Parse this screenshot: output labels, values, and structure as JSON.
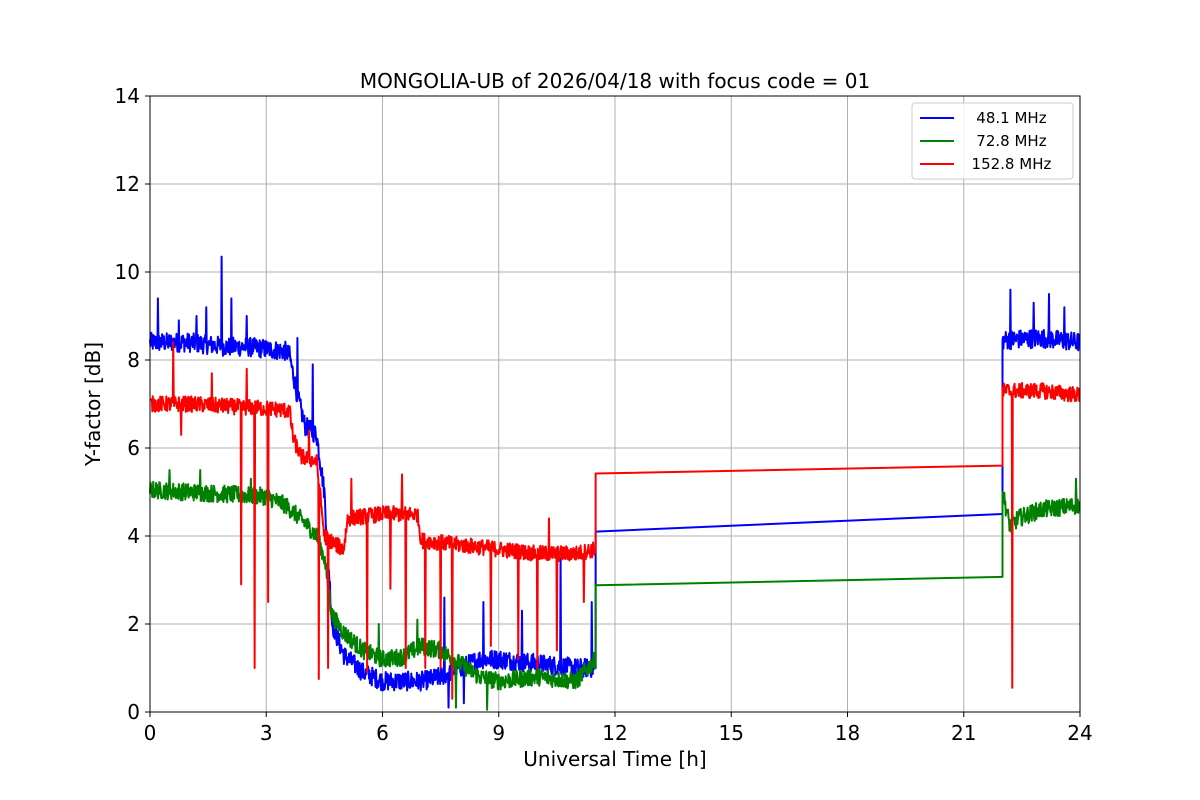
{
  "chart_data": {
    "type": "line",
    "title": "MONGOLIA-UB of 2026/04/18 with focus code = 01",
    "xlabel": "Universal Time [h]",
    "ylabel": "Y-factor [dB]",
    "xlim": [
      0,
      24
    ],
    "ylim": [
      0,
      14
    ],
    "xticks": [
      0,
      3,
      6,
      9,
      12,
      15,
      18,
      21,
      24
    ],
    "yticks": [
      0,
      2,
      4,
      6,
      8,
      10,
      12,
      14
    ],
    "grid": true,
    "legend_position": "top-right",
    "series": [
      {
        "name": "48.1 MHz",
        "label": "   48.1 MHz",
        "color": "#0000ff",
        "noise": 0.22,
        "points": [
          [
            0.0,
            8.4
          ],
          [
            0.5,
            8.4
          ],
          [
            1.0,
            8.4
          ],
          [
            1.5,
            8.35
          ],
          [
            2.0,
            8.3
          ],
          [
            2.5,
            8.3
          ],
          [
            3.0,
            8.25
          ],
          [
            3.5,
            8.2
          ],
          [
            3.6,
            8.1
          ],
          [
            3.8,
            7.2
          ],
          [
            4.0,
            6.5
          ],
          [
            4.3,
            6.3
          ],
          [
            4.5,
            5.0
          ],
          [
            4.7,
            2.0
          ],
          [
            5.0,
            1.3
          ],
          [
            5.5,
            0.9
          ],
          [
            6.0,
            0.7
          ],
          [
            7.0,
            0.7
          ],
          [
            7.5,
            0.8
          ],
          [
            8.0,
            1.0
          ],
          [
            8.5,
            1.2
          ],
          [
            9.0,
            1.2
          ],
          [
            10.0,
            1.1
          ],
          [
            11.0,
            1.0
          ],
          [
            11.5,
            1.0
          ],
          [
            11.5,
            4.1
          ],
          [
            22.0,
            4.5
          ],
          [
            22.0,
            8.45
          ],
          [
            23.0,
            8.5
          ],
          [
            24.0,
            8.4
          ]
        ],
        "spikes": [
          [
            0.2,
            9.4
          ],
          [
            0.75,
            8.9
          ],
          [
            1.2,
            9.0
          ],
          [
            1.45,
            9.2
          ],
          [
            1.85,
            10.35
          ],
          [
            2.1,
            9.4
          ],
          [
            2.5,
            9.0
          ],
          [
            3.8,
            8.5
          ],
          [
            4.2,
            7.9
          ],
          [
            7.6,
            2.6
          ],
          [
            8.6,
            2.5
          ],
          [
            9.6,
            2.3
          ],
          [
            10.6,
            3.5
          ],
          [
            11.4,
            2.5
          ],
          [
            22.2,
            9.6
          ],
          [
            22.8,
            9.3
          ],
          [
            23.2,
            9.5
          ],
          [
            23.6,
            9.2
          ]
        ],
        "dips": [
          [
            7.7,
            0.1
          ],
          [
            8.1,
            0.2
          ]
        ]
      },
      {
        "name": "72.8 MHz",
        "label": "   72.8 MHz",
        "color": "#008000",
        "noise": 0.2,
        "points": [
          [
            0.0,
            5.05
          ],
          [
            1.0,
            5.0
          ],
          [
            2.0,
            4.95
          ],
          [
            3.0,
            4.9
          ],
          [
            3.5,
            4.7
          ],
          [
            4.0,
            4.3
          ],
          [
            4.3,
            4.0
          ],
          [
            4.5,
            3.5
          ],
          [
            4.7,
            2.2
          ],
          [
            5.0,
            1.8
          ],
          [
            5.5,
            1.4
          ],
          [
            6.0,
            1.2
          ],
          [
            6.5,
            1.25
          ],
          [
            7.0,
            1.5
          ],
          [
            7.5,
            1.4
          ],
          [
            8.0,
            1.1
          ],
          [
            8.5,
            0.8
          ],
          [
            9.0,
            0.7
          ],
          [
            10.0,
            0.8
          ],
          [
            11.0,
            0.7
          ],
          [
            11.5,
            1.2
          ],
          [
            11.5,
            2.88
          ],
          [
            22.0,
            3.07
          ],
          [
            22.0,
            5.0
          ],
          [
            22.2,
            4.2
          ],
          [
            22.4,
            4.4
          ],
          [
            23.0,
            4.6
          ],
          [
            24.0,
            4.7
          ]
        ],
        "spikes": [
          [
            0.5,
            5.5
          ],
          [
            1.3,
            5.5
          ],
          [
            2.6,
            5.3
          ],
          [
            5.9,
            2.0
          ],
          [
            6.9,
            2.1
          ],
          [
            23.9,
            5.3
          ]
        ],
        "dips": [
          [
            8.7,
            0.05
          ],
          [
            7.9,
            0.1
          ]
        ]
      },
      {
        "name": "152.8 MHz",
        "label": "  152.8 MHz",
        "color": "#ff0000",
        "noise": 0.18,
        "points": [
          [
            0.0,
            7.0
          ],
          [
            1.0,
            7.0
          ],
          [
            2.0,
            6.95
          ],
          [
            3.0,
            6.9
          ],
          [
            3.6,
            6.85
          ],
          [
            3.7,
            6.2
          ],
          [
            3.9,
            5.8
          ],
          [
            4.3,
            5.7
          ],
          [
            4.5,
            4.0
          ],
          [
            4.8,
            3.8
          ],
          [
            5.0,
            3.7
          ],
          [
            5.1,
            4.4
          ],
          [
            6.0,
            4.5
          ],
          [
            6.9,
            4.5
          ],
          [
            7.0,
            3.9
          ],
          [
            8.0,
            3.8
          ],
          [
            9.0,
            3.7
          ],
          [
            10.0,
            3.6
          ],
          [
            11.0,
            3.6
          ],
          [
            11.5,
            3.7
          ],
          [
            11.5,
            5.42
          ],
          [
            22.0,
            5.6
          ],
          [
            22.0,
            7.3
          ],
          [
            23.0,
            7.3
          ],
          [
            24.0,
            7.2
          ]
        ],
        "spikes": [
          [
            0.6,
            8.4
          ],
          [
            1.6,
            7.7
          ],
          [
            2.5,
            7.8
          ],
          [
            4.1,
            6.4
          ],
          [
            5.2,
            5.3
          ],
          [
            6.5,
            5.4
          ],
          [
            10.3,
            4.4
          ]
        ],
        "dips": [
          [
            0.8,
            6.3
          ],
          [
            2.35,
            2.9
          ],
          [
            2.7,
            1.0
          ],
          [
            3.05,
            2.5
          ],
          [
            4.35,
            0.75
          ],
          [
            4.6,
            1.0
          ],
          [
            5.6,
            0.9
          ],
          [
            6.2,
            2.8
          ],
          [
            6.6,
            1.0
          ],
          [
            7.1,
            1.0
          ],
          [
            7.5,
            1.0
          ],
          [
            7.8,
            0.3
          ],
          [
            8.8,
            1.5
          ],
          [
            9.5,
            1.2
          ],
          [
            10.0,
            1.0
          ],
          [
            10.5,
            1.4
          ],
          [
            11.2,
            2.5
          ],
          [
            22.25,
            0.55
          ]
        ]
      }
    ]
  }
}
